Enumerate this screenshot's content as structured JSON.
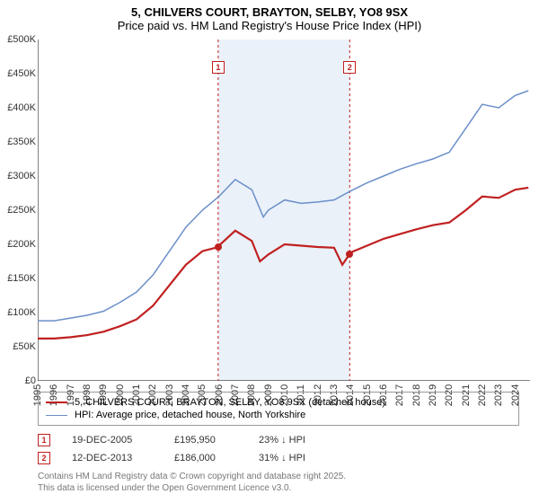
{
  "title_line1": "5, CHILVERS COURT, BRAYTON, SELBY, YO8 9SX",
  "title_line2": "Price paid vs. HM Land Registry's House Price Index (HPI)",
  "chart": {
    "type": "line",
    "background_color": "#ffffff",
    "shade_color": "#eaf1f9",
    "x_years": [
      1995,
      1996,
      1997,
      1998,
      1999,
      2000,
      2001,
      2002,
      2003,
      2004,
      2005,
      2006,
      2007,
      2008,
      2009,
      2010,
      2011,
      2012,
      2013,
      2014,
      2015,
      2016,
      2017,
      2018,
      2019,
      2020,
      2021,
      2022,
      2023,
      2024
    ],
    "y_min": 0,
    "y_max": 500000,
    "y_tick_step": 50000,
    "y_tick_labels": [
      "£0",
      "£50K",
      "£100K",
      "£150K",
      "£200K",
      "£250K",
      "£300K",
      "£350K",
      "£400K",
      "£450K",
      "£500K"
    ],
    "series": [
      {
        "name": "5, CHILVERS COURT, BRAYTON, SELBY, YO8 9SX (detached house)",
        "color": "#c02020",
        "line_width": 2.2,
        "points": [
          [
            1995,
            62000
          ],
          [
            1996,
            62000
          ],
          [
            1997,
            64000
          ],
          [
            1998,
            67000
          ],
          [
            1999,
            72000
          ],
          [
            2000,
            80000
          ],
          [
            2001,
            90000
          ],
          [
            2002,
            110000
          ],
          [
            2003,
            140000
          ],
          [
            2004,
            170000
          ],
          [
            2005,
            190000
          ],
          [
            2005.96,
            195950
          ],
          [
            2006,
            198000
          ],
          [
            2007,
            220000
          ],
          [
            2008,
            205000
          ],
          [
            2008.5,
            175000
          ],
          [
            2009,
            185000
          ],
          [
            2010,
            200000
          ],
          [
            2011,
            198000
          ],
          [
            2012,
            196000
          ],
          [
            2013,
            195000
          ],
          [
            2013.5,
            170000
          ],
          [
            2013.95,
            186000
          ],
          [
            2014,
            188000
          ],
          [
            2015,
            198000
          ],
          [
            2016,
            208000
          ],
          [
            2017,
            215000
          ],
          [
            2018,
            222000
          ],
          [
            2019,
            228000
          ],
          [
            2020,
            232000
          ],
          [
            2021,
            250000
          ],
          [
            2022,
            270000
          ],
          [
            2023,
            268000
          ],
          [
            2024,
            280000
          ],
          [
            2024.8,
            283000
          ]
        ]
      },
      {
        "name": "HPI: Average price, detached house, North Yorkshire",
        "color": "#6b8fc9",
        "line_width": 1.5,
        "points": [
          [
            1995,
            88000
          ],
          [
            1996,
            88000
          ],
          [
            1997,
            92000
          ],
          [
            1998,
            96000
          ],
          [
            1999,
            102000
          ],
          [
            2000,
            115000
          ],
          [
            2001,
            130000
          ],
          [
            2002,
            155000
          ],
          [
            2003,
            190000
          ],
          [
            2004,
            225000
          ],
          [
            2005,
            250000
          ],
          [
            2006,
            270000
          ],
          [
            2007,
            295000
          ],
          [
            2008,
            280000
          ],
          [
            2008.7,
            240000
          ],
          [
            2009,
            250000
          ],
          [
            2010,
            265000
          ],
          [
            2011,
            260000
          ],
          [
            2012,
            262000
          ],
          [
            2013,
            265000
          ],
          [
            2014,
            278000
          ],
          [
            2015,
            290000
          ],
          [
            2016,
            300000
          ],
          [
            2017,
            310000
          ],
          [
            2018,
            318000
          ],
          [
            2019,
            325000
          ],
          [
            2020,
            335000
          ],
          [
            2021,
            370000
          ],
          [
            2022,
            405000
          ],
          [
            2023,
            400000
          ],
          [
            2024,
            418000
          ],
          [
            2024.8,
            425000
          ]
        ]
      }
    ],
    "shade_band": {
      "x_start": 2005.96,
      "x_end": 2013.95
    },
    "markers": [
      {
        "id": "1",
        "x": 2005.96,
        "y": 195950
      },
      {
        "id": "2",
        "x": 2013.95,
        "y": 186000
      }
    ]
  },
  "legend": {
    "rows": [
      {
        "color": "#c02020",
        "width": 2.2,
        "label": "5, CHILVERS COURT, BRAYTON, SELBY, YO8 9SX (detached house)"
      },
      {
        "color": "#6b8fc9",
        "width": 1.5,
        "label": "HPI: Average price, detached house, North Yorkshire"
      }
    ]
  },
  "events": [
    {
      "id": "1",
      "date": "19-DEC-2005",
      "price": "£195,950",
      "delta": "23% ↓ HPI"
    },
    {
      "id": "2",
      "date": "12-DEC-2013",
      "price": "£186,000",
      "delta": "31% ↓ HPI"
    }
  ],
  "attribution_line1": "Contains HM Land Registry data © Crown copyright and database right 2025.",
  "attribution_line2": "This data is licensed under the Open Government Licence v3.0."
}
